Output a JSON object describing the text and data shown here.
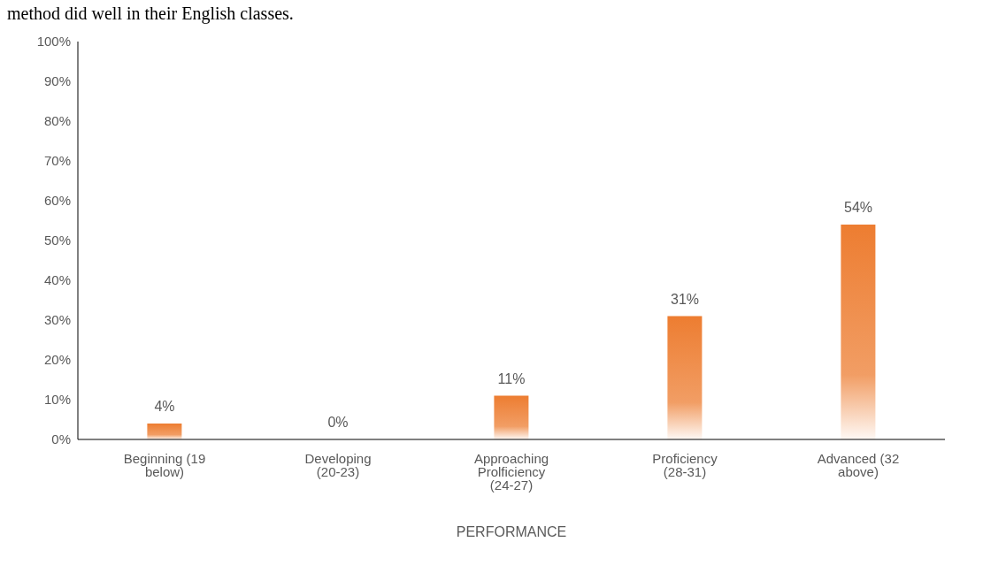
{
  "chart_data": {
    "type": "bar",
    "xlabel": "PERFORMANCE",
    "annotations": [
      "method did well in their English classes."
    ],
    "categories": [
      "Beginning (19 below)",
      "Developing (20-23)",
      "Approaching Prolficiency (24-27)",
      "Proficiency (28-31)",
      "Advanced (32 above)"
    ],
    "values": [
      4,
      0,
      11,
      31,
      54
    ],
    "color": "#ed7d31",
    "value_labels": [
      "4%",
      "0%",
      "11%",
      "31%",
      "54%"
    ],
    "ylim": [
      0,
      100
    ],
    "yticks": [
      {
        "value": 0,
        "label": "0%"
      },
      {
        "value": 10,
        "label": "10%"
      },
      {
        "value": 20,
        "label": "20%"
      },
      {
        "value": 30,
        "label": "30%"
      },
      {
        "value": 40,
        "label": "40%"
      },
      {
        "value": 50,
        "label": "50%"
      },
      {
        "value": 60,
        "label": "60%"
      },
      {
        "value": 70,
        "label": "70%"
      },
      {
        "value": 80,
        "label": "80%"
      },
      {
        "value": 90,
        "label": "90%"
      },
      {
        "value": 100,
        "label": "100%"
      }
    ],
    "grid": false,
    "legend": false
  }
}
